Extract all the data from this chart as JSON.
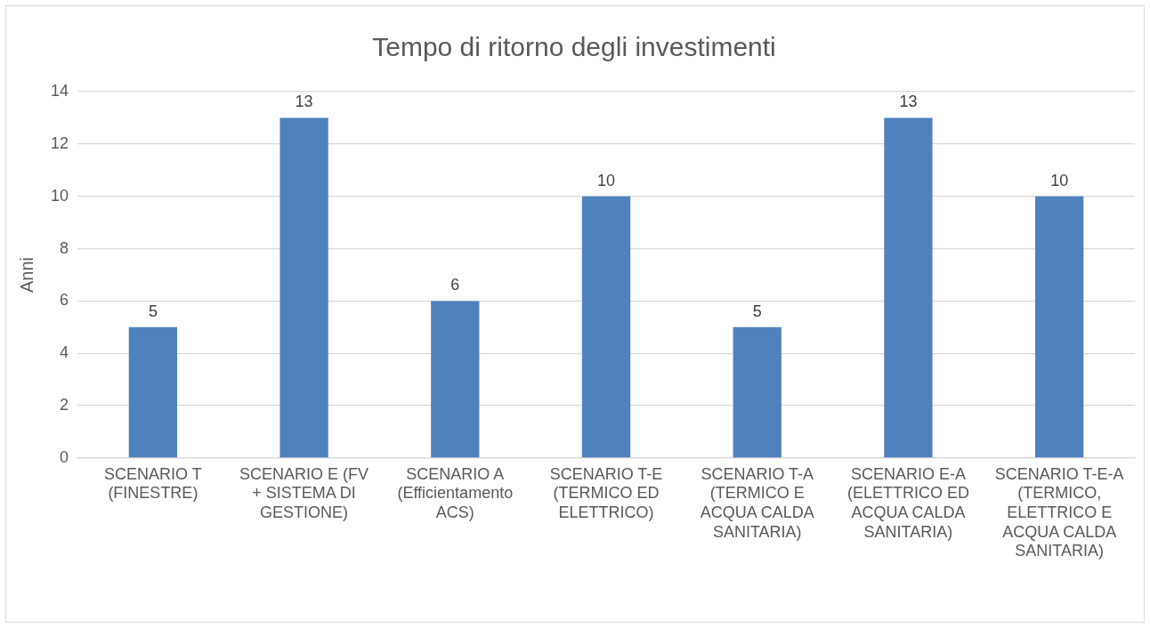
{
  "chart_data": {
    "type": "bar",
    "title": "Tempo di ritorno degli investimenti",
    "ylabel": "Anni",
    "categories": [
      "SCENARIO T (FINESTRE)",
      "SCENARIO E (FV + SISTEMA DI GESTIONE)",
      "SCENARIO A (Efficientamento ACS)",
      "SCENARIO T-E (TERMICO ED ELETTRICO)",
      "SCENARIO T-A (TERMICO E ACQUA CALDA SANITARIA)",
      "SCENARIO E-A (ELETTRICO ED ACQUA CALDA SANITARIA)",
      "SCENARIO T-E-A (TERMICO, ELETTRICO E ACQUA CALDA SANITARIA)"
    ],
    "values": [
      5,
      13,
      6,
      10,
      5,
      13,
      10
    ],
    "color": "#4f81bd",
    "ylim": [
      0,
      14
    ],
    "yticks": [
      0,
      2,
      4,
      6,
      8,
      10,
      12,
      14
    ],
    "grid": "y",
    "legend": false,
    "data_labels": true
  }
}
